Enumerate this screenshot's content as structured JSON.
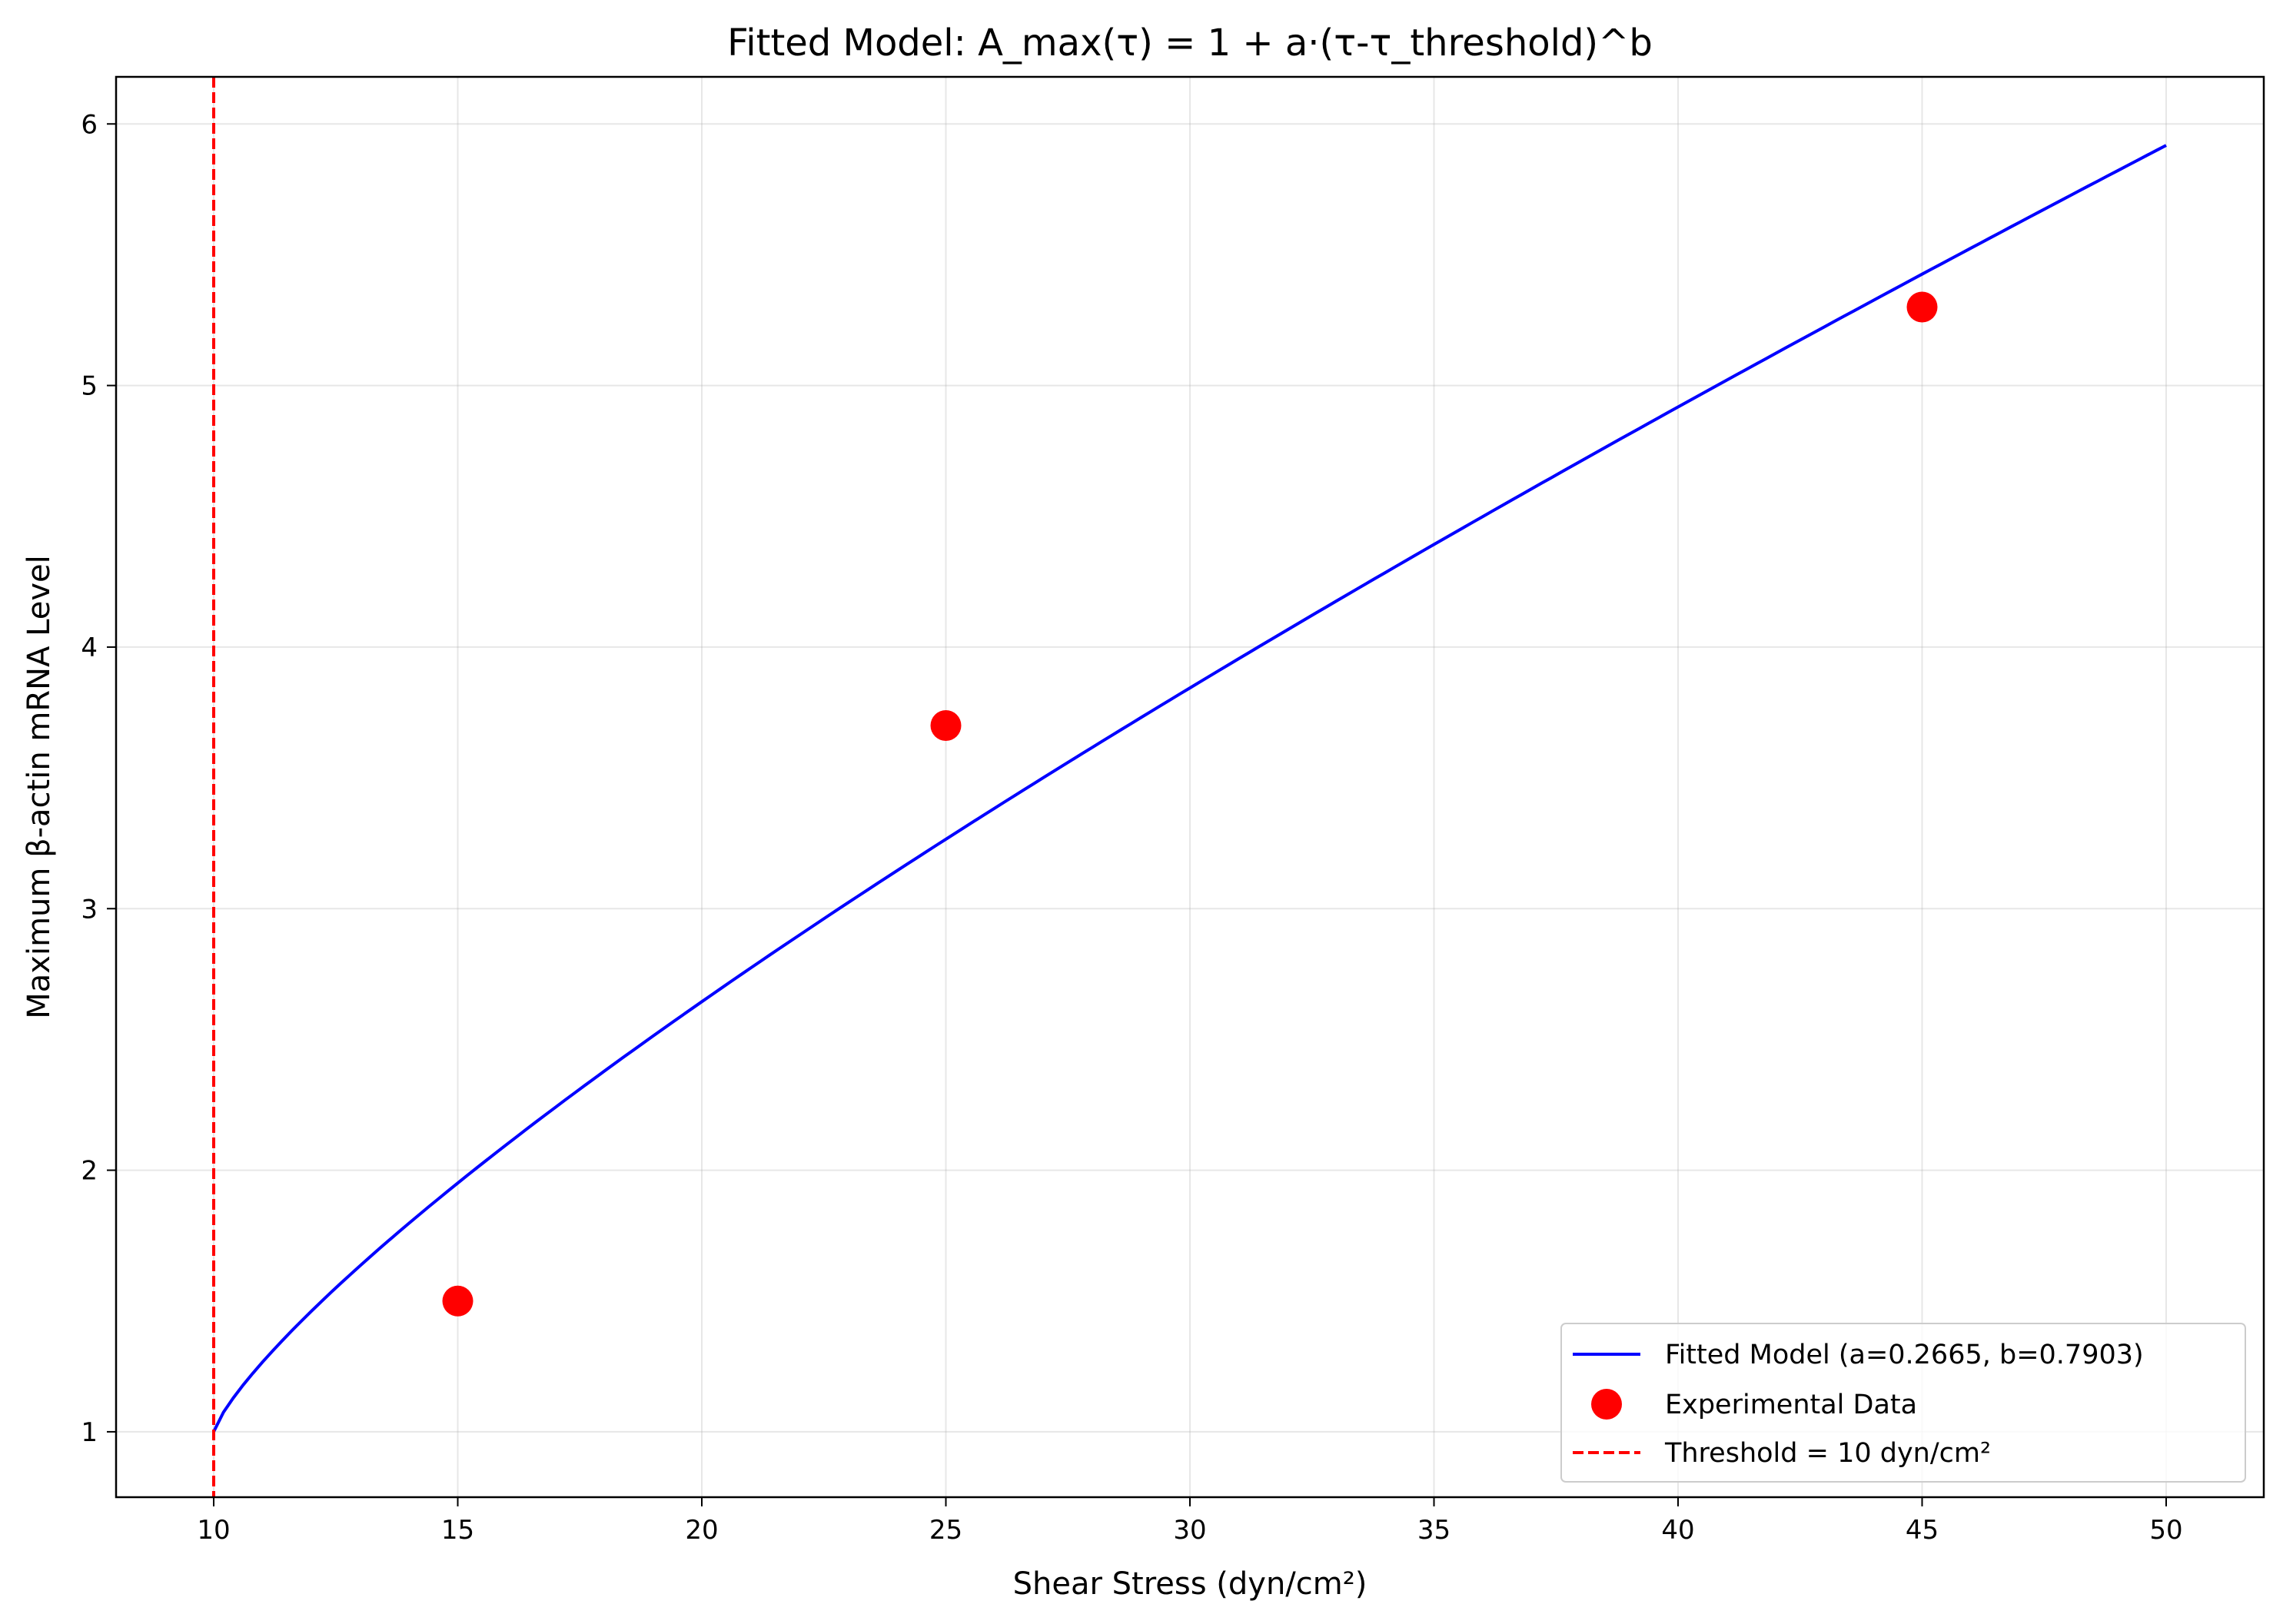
{
  "chart_data": {
    "type": "line",
    "title": "Fitted Model: A_max(τ) = 1 + a·(τ-τ_threshold)^b",
    "xlabel": "Shear Stress (dyn/cm²)",
    "ylabel": "Maximum β-actin mRNA Level",
    "xlim": [
      8,
      52
    ],
    "ylim": [
      0.75,
      6.18
    ],
    "xticks": [
      10,
      15,
      20,
      25,
      30,
      35,
      40,
      45,
      50
    ],
    "yticks": [
      1,
      2,
      3,
      4,
      5,
      6
    ],
    "grid": true,
    "legend_position": "lower-right",
    "model": {
      "a": 0.2665,
      "b": 0.7903,
      "threshold": 10,
      "x_start": 10,
      "x_end": 50
    },
    "series": [
      {
        "name": "Fitted Model (a=0.2665, b=0.7903)",
        "kind": "line",
        "color": "#0000ff",
        "x": [
          10,
          10.5,
          11,
          12,
          13,
          14,
          15,
          17.5,
          20,
          22.5,
          25,
          27.5,
          30,
          32.5,
          35,
          37.5,
          40,
          42.5,
          45,
          47.5,
          50
        ],
        "y": [
          1.0,
          1.154,
          1.267,
          1.462,
          1.635,
          1.796,
          1.947,
          2.297,
          2.616,
          2.918,
          3.204,
          3.477,
          3.741,
          3.997,
          4.245,
          4.487,
          4.723,
          4.954,
          5.181,
          5.404,
          5.622
        ]
      },
      {
        "name": "Experimental Data",
        "kind": "scatter",
        "color": "#ff0000",
        "x": [
          15,
          25,
          45
        ],
        "y": [
          1.5,
          3.7,
          5.3
        ]
      },
      {
        "name": "Threshold = 10 dyn/cm²",
        "kind": "vline",
        "color": "#ff0000",
        "x": 10
      }
    ]
  }
}
